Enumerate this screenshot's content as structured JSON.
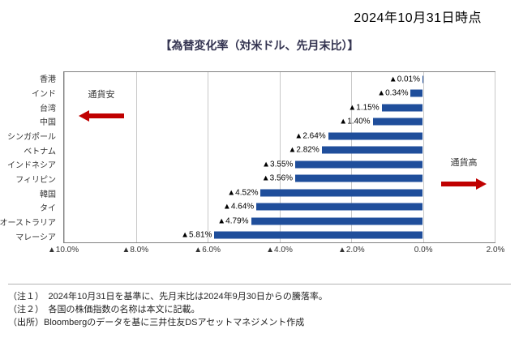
{
  "header": {
    "date_label": "2024年10月31日時点",
    "chart_title": "【為替変化率（対米ドル、先月末比）】"
  },
  "chart_data": {
    "type": "bar",
    "orientation": "horizontal",
    "title": "為替変化率（対米ドル、先月末比）",
    "categories": [
      "香港",
      "インド",
      "台湾",
      "中国",
      "シンガポール",
      "ベトナム",
      "インドネシア",
      "フィリピン",
      "韓国",
      "タイ",
      "オーストラリア",
      "マレーシア"
    ],
    "values": [
      -0.01,
      -0.34,
      -1.15,
      -1.4,
      -2.64,
      -2.82,
      -3.55,
      -3.56,
      -4.52,
      -4.64,
      -4.79,
      -5.81
    ],
    "labels": [
      "▲0.01%",
      "▲0.34%",
      "▲1.15%",
      "▲1.40%",
      "▲2.64%",
      "▲2.82%",
      "▲3.55%",
      "▲3.56%",
      "▲4.52%",
      "▲4.64%",
      "▲4.79%",
      "▲5.81%"
    ],
    "x_ticks": [
      "▲10.0%",
      "▲8.0%",
      "▲6.0%",
      "▲4.0%",
      "▲2.0%",
      "0.0%",
      "2.0%"
    ],
    "x_tick_values": [
      -10,
      -8,
      -6,
      -4,
      -2,
      0,
      2
    ],
    "xlim": [
      -10,
      2
    ],
    "grid": "vertical",
    "bar_color": "#1F4E9B",
    "arrow_color": "#C00000",
    "annotations": {
      "weak": "通貨安",
      "strong": "通貨高"
    }
  },
  "footnotes": [
    "（注１）　2024年10月31日を基準に、先月末比は2024年9月30日からの騰落率。",
    "（注２）　各国の株価指数の名称は本文に記載。",
    "（出所）Bloombergのデータを基に三井住友DSアセットマネジメント作成"
  ]
}
